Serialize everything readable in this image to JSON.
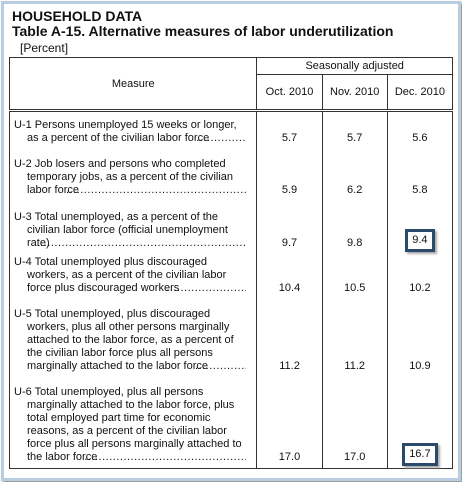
{
  "header": {
    "section": "HOUSEHOLD DATA",
    "title": "Table A-15. Alternative measures of labor underutilization",
    "unit": "[Percent]"
  },
  "table": {
    "measure_header": "Measure",
    "group_header": "Seasonally adjusted",
    "columns": [
      "Oct. 2010",
      "Nov. 2010",
      "Dec. 2010"
    ],
    "rows": [
      {
        "measure": "U-1 Persons unemployed 15 weeks or longer, as a percent of the civilian labor force",
        "values": [
          "5.7",
          "5.7",
          "5.6"
        ]
      },
      {
        "measure": "U-2 Job losers and persons who completed temporary jobs, as a percent of the civilian labor force",
        "values": [
          "5.9",
          "6.2",
          "5.8"
        ]
      },
      {
        "measure": "U-3 Total unemployed, as a percent of the civilian labor force (official unemployment rate)",
        "values": [
          "9.7",
          "9.8",
          "9.4"
        ]
      },
      {
        "measure": "U-4 Total unemployed plus discouraged workers, as a percent of the civilian labor force plus discouraged workers",
        "values": [
          "10.4",
          "10.5",
          "10.2"
        ]
      },
      {
        "measure": "U-5 Total unemployed, plus discouraged workers, plus all other persons marginally attached to the labor force, as a percent of the civilian labor force plus all persons marginally attached to the labor force",
        "values": [
          "11.2",
          "11.2",
          "10.9"
        ]
      },
      {
        "measure": "U-6 Total unemployed, plus all persons marginally attached to the labor force, plus total employed part time for economic reasons, as a percent of the civilian labor force plus all persons marginally attached to the labor force",
        "values": [
          "17.0",
          "17.0",
          "16.7"
        ]
      }
    ]
  }
}
